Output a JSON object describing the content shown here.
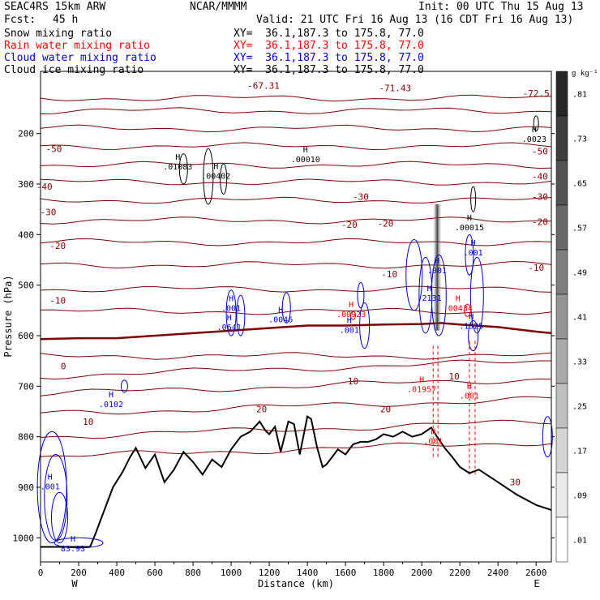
{
  "header": {
    "model": "SEAC4RS 15km ARW",
    "org": "NCAR/MMMM",
    "init": "Init: 00 UTC Thu 15 Aug 13",
    "fcst_label": "Fcst:",
    "fcst_value": "45 h",
    "valid": "Valid: 21 UTC Fri 16 Aug 13 (16 CDT Fri 16 Aug 13)",
    "fields": [
      {
        "name": "Snow mixing ratio",
        "xy": "XY=  36.1,187.3 to 175.8, 77.0",
        "color": "#000000"
      },
      {
        "name": "Rain water mixing ratio",
        "xy": "XY=  36.1,187.3 to 175.8, 77.0",
        "color": "#ff0000"
      },
      {
        "name": "Cloud water mixing ratio",
        "xy": "XY=  36.1,187.3 to 175.8, 77.0",
        "color": "#0000cc"
      },
      {
        "name": "Cloud ice mixing ratio",
        "xy": "XY=  36.1,187.3 to 175.8, 77.0",
        "color": "#000000"
      }
    ]
  },
  "colorbar": {
    "unit": "g kg⁻¹",
    "labels": [
      ".81",
      ".73",
      ".65",
      ".57",
      ".49",
      ".41",
      ".33",
      ".25",
      ".17",
      ".09",
      ".01"
    ]
  },
  "chart_data": {
    "type": "contour",
    "xlabel": "Distance (km)",
    "ylabel": "Pressure (hPa)",
    "xlim": [
      0,
      2680
    ],
    "ylim": [
      1050,
      100
    ],
    "x_ticks": [
      0,
      200,
      400,
      600,
      800,
      1000,
      1200,
      1400,
      1600,
      1800,
      2000,
      2200,
      2400,
      2600
    ],
    "y_ticks": [
      200,
      300,
      400,
      500,
      600,
      700,
      800,
      900,
      1000
    ],
    "y_tick_labels": [
      "200",
      "300",
      "400",
      "500",
      "600",
      "700",
      "800",
      "900",
      "1000"
    ],
    "x_end_labels": {
      "left": "W",
      "right": "E"
    },
    "temperature_labels": [
      {
        "x": 1170,
        "p": 105,
        "text": "-67.31"
      },
      {
        "x": 1860,
        "p": 110,
        "text": "-71.43"
      },
      {
        "x": 2600,
        "p": 120,
        "text": "-72.5"
      },
      {
        "x": 70,
        "p": 230,
        "text": "-50"
      },
      {
        "x": 2620,
        "p": 235,
        "text": "-50"
      },
      {
        "x": 2620,
        "p": 285,
        "text": "-40"
      },
      {
        "x": 20,
        "p": 305,
        "text": "-40"
      },
      {
        "x": 1680,
        "p": 325,
        "text": "-30"
      },
      {
        "x": 2620,
        "p": 325,
        "text": "-30"
      },
      {
        "x": 40,
        "p": 355,
        "text": "-30"
      },
      {
        "x": 1620,
        "p": 380,
        "text": "-20"
      },
      {
        "x": 1810,
        "p": 378,
        "text": "-20"
      },
      {
        "x": 2620,
        "p": 375,
        "text": "-20"
      },
      {
        "x": 90,
        "p": 422,
        "text": "-20"
      },
      {
        "x": 1830,
        "p": 478,
        "text": "-10"
      },
      {
        "x": 2600,
        "p": 465,
        "text": "-10"
      },
      {
        "x": 90,
        "p": 530,
        "text": "-10"
      },
      {
        "x": 120,
        "p": 660,
        "text": "0"
      },
      {
        "x": 1640,
        "p": 690,
        "text": "10"
      },
      {
        "x": 2170,
        "p": 680,
        "text": "10"
      },
      {
        "x": 250,
        "p": 770,
        "text": "10"
      },
      {
        "x": 1160,
        "p": 745,
        "text": "20"
      },
      {
        "x": 1810,
        "p": 745,
        "text": "20"
      },
      {
        "x": 2490,
        "p": 890,
        "text": "30"
      }
    ],
    "maxima": [
      {
        "x": 720,
        "p": 265,
        "text": ".01083",
        "color": "#000000"
      },
      {
        "x": 920,
        "p": 283,
        "text": ".00402",
        "color": "#000000"
      },
      {
        "x": 1390,
        "p": 250,
        "text": ".00010",
        "color": "#000000"
      },
      {
        "x": 2590,
        "p": 210,
        "text": ".0023",
        "color": "#000000"
      },
      {
        "x": 2250,
        "p": 385,
        "text": ".00015",
        "color": "#000000"
      },
      {
        "x": 2270,
        "p": 435,
        "text": ".001",
        "color": "#0000cc"
      },
      {
        "x": 2080,
        "p": 470,
        "text": ".001",
        "color": "#0000cc"
      },
      {
        "x": 2040,
        "p": 525,
        "text": ".2131",
        "color": "#0000cc"
      },
      {
        "x": 2190,
        "p": 545,
        "text": ".00434",
        "color": "#ff0000"
      },
      {
        "x": 2260,
        "p": 580,
        "text": ".1325",
        "color": "#0000cc"
      },
      {
        "x": 1000,
        "p": 545,
        "text": ".001",
        "color": "#0000cc"
      },
      {
        "x": 990,
        "p": 582,
        "text": ".0641",
        "color": "#0000cc"
      },
      {
        "x": 1260,
        "p": 567,
        "text": ".0046",
        "color": "#0000cc"
      },
      {
        "x": 1630,
        "p": 557,
        "text": ".00923",
        "color": "#ff0000"
      },
      {
        "x": 1620,
        "p": 588,
        "text": ".001",
        "color": "#0000cc"
      },
      {
        "x": 2000,
        "p": 705,
        "text": ".01957",
        "color": "#ff0000"
      },
      {
        "x": 2250,
        "p": 718,
        "text": ".001",
        "color": "#ff0000"
      },
      {
        "x": 2060,
        "p": 808,
        "text": ".001",
        "color": "#ff0000"
      },
      {
        "x": 370,
        "p": 735,
        "text": ".0102",
        "color": "#0000cc"
      },
      {
        "x": 50,
        "p": 898,
        "text": ".001",
        "color": "#0000cc"
      },
      {
        "x": 170,
        "p": 1020,
        "text": "83.93",
        "color": "#0000cc"
      }
    ],
    "terrain": {
      "x": [
        0,
        260,
        290,
        320,
        380,
        430,
        470,
        500,
        550,
        600,
        650,
        700,
        750,
        800,
        850,
        900,
        950,
        1000,
        1050,
        1100,
        1150,
        1180,
        1200,
        1230,
        1260,
        1300,
        1330,
        1360,
        1400,
        1420,
        1450,
        1480,
        1500,
        1530,
        1560,
        1600,
        1640,
        1680,
        1720,
        1760,
        1800,
        1850,
        1900,
        1950,
        2000,
        2050,
        2080,
        2120,
        2160,
        2200,
        2250,
        2300,
        2400,
        2500,
        2600,
        2680
      ],
      "p": [
        1018,
        1018,
        990,
        960,
        900,
        870,
        840,
        822,
        862,
        835,
        890,
        865,
        830,
        850,
        875,
        845,
        860,
        825,
        800,
        790,
        770,
        788,
        795,
        780,
        830,
        770,
        775,
        835,
        760,
        765,
        820,
        860,
        855,
        840,
        825,
        835,
        815,
        810,
        810,
        805,
        795,
        800,
        790,
        800,
        795,
        782,
        800,
        822,
        840,
        860,
        872,
        865,
        890,
        915,
        935,
        945
      ]
    },
    "freezing_level": {
      "x": [
        0,
        200,
        400,
        600,
        800,
        1000,
        1200,
        1400,
        1600,
        1800,
        2000,
        2100,
        2200,
        2400,
        2600,
        2680
      ],
      "p": [
        607,
        605,
        605,
        600,
        595,
        590,
        585,
        580,
        580,
        578,
        577,
        575,
        578,
        583,
        592,
        595
      ]
    }
  }
}
